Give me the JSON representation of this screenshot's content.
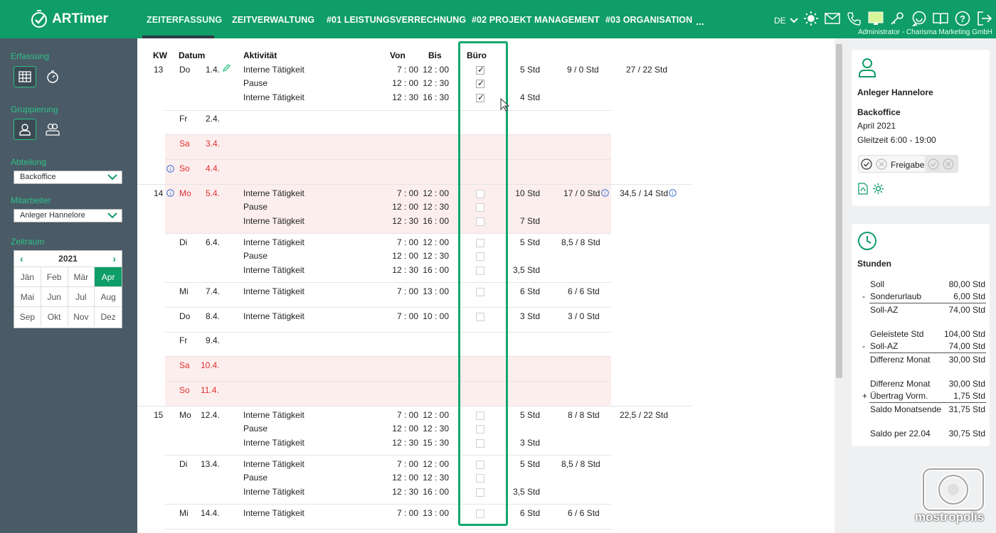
{
  "app": {
    "name": "ARTimer"
  },
  "nav": {
    "tabs": [
      "ZEITERFASSUNG",
      "ZEITVERWALTUNG",
      "#01 LEISTUNGSVERRECHNUNG",
      "#02 PROJEKT MANAGEMENT",
      "#03 ORGANISATION"
    ],
    "more": "...",
    "lang": "DE",
    "admin": "Administrator - Charisma Marketing GmbH",
    "icons": [
      "sun-icon",
      "mail-icon",
      "phone-icon",
      "note-icon",
      "key-icon",
      "chat-icon",
      "book-icon",
      "help-icon",
      "logout-icon"
    ]
  },
  "sidebar": {
    "erfassung_label": "Erfassung",
    "gruppierung_label": "Gruppierung",
    "abteilung_label": "Abteilung",
    "abteilung_value": "Backoffice",
    "mitarbeiter_label": "Mitarbeiter",
    "mitarbeiter_value": "Anleger Hannelore",
    "zeitraum_label": "Zeitraum",
    "year": "2021",
    "months": [
      "Jän",
      "Feb",
      "Mär",
      "Apr",
      "Mai",
      "Jun",
      "Jul",
      "Aug",
      "Sep",
      "Okt",
      "Nov",
      "Dez"
    ],
    "active_month": "Apr"
  },
  "table": {
    "headers": {
      "kw": "KW",
      "datum": "Datum",
      "aktivitaet": "Aktivität",
      "von": "Von",
      "bis": "Bis",
      "buero": "Büro"
    },
    "kw": {
      "k13": "13",
      "k14": "14",
      "k15": "15"
    },
    "days": [
      {
        "day": "Do",
        "date": "1.4."
      },
      {
        "day": "Fr",
        "date": "2.4."
      },
      {
        "day": "Sa",
        "date": "3.4."
      },
      {
        "day": "So",
        "date": "4.4."
      },
      {
        "day": "Mo",
        "date": "5.4."
      },
      {
        "day": "Di",
        "date": "6.4."
      },
      {
        "day": "Mi",
        "date": "7.4."
      },
      {
        "day": "Do",
        "date": "8.4."
      },
      {
        "day": "Fr",
        "date": "9.4."
      },
      {
        "day": "Sa",
        "date": "10.4."
      },
      {
        "day": "So",
        "date": "11.4."
      },
      {
        "day": "Mo",
        "date": "12.4."
      },
      {
        "day": "Di",
        "date": "13.4."
      },
      {
        "day": "Mi",
        "date": "14.4."
      }
    ],
    "entries": [
      {
        "act": "Interne Tätigkeit",
        "von": "7 : 00",
        "bis": "12 : 00",
        "std": "5 Std"
      },
      {
        "act": "Pause",
        "von": "12 : 00",
        "bis": "12 : 30"
      },
      {
        "act": "Interne Tätigkeit",
        "von": "12 : 30",
        "bis": "16 : 30",
        "std": "4 Std"
      },
      {
        "act": "Interne Tätigkeit",
        "von": "7 : 00",
        "bis": "12 : 00",
        "std": "10 Std"
      },
      {
        "act": "Pause",
        "von": "12 : 00",
        "bis": "12 : 30"
      },
      {
        "act": "Interne Tätigkeit",
        "von": "12 : 30",
        "bis": "16 : 00",
        "std": "7 Std"
      },
      {
        "act": "Interne Tätigkeit",
        "von": "7 : 00",
        "bis": "12 : 00",
        "std": "5 Std"
      },
      {
        "act": "Pause",
        "von": "12 : 00",
        "bis": "12 : 30"
      },
      {
        "act": "Interne Tätigkeit",
        "von": "12 : 30",
        "bis": "16 : 00",
        "std": "3,5 Std"
      },
      {
        "act": "Interne Tätigkeit",
        "von": "7 : 00",
        "bis": "13 : 00",
        "std": "6 Std"
      },
      {
        "act": "Interne Tätigkeit",
        "von": "7 : 00",
        "bis": "10 : 00",
        "std": "3 Std"
      },
      {
        "act": "Interne Tätigkeit",
        "von": "7 : 00",
        "bis": "12 : 00",
        "std": "5 Std"
      },
      {
        "act": "Pause",
        "von": "12 : 00",
        "bis": "12 : 30"
      },
      {
        "act": "Interne Tätigkeit",
        "von": "12 : 30",
        "bis": "15 : 30",
        "std": "3 Std"
      },
      {
        "act": "Interne Tätigkeit",
        "von": "7 : 00",
        "bis": "12 : 00",
        "std": "5 Std"
      },
      {
        "act": "Pause",
        "von": "12 : 00",
        "bis": "12 : 30"
      },
      {
        "act": "Interne Tätigkeit",
        "von": "12 : 30",
        "bis": "16 : 00",
        "std": "3,5 Std"
      },
      {
        "act": "Interne Tätigkeit",
        "von": "7 : 00",
        "bis": "13 : 00",
        "std": "6 Std"
      }
    ],
    "daysum": {
      "d1": "9 / 0 Std",
      "d5": "17 / 0 Std",
      "d6": "8,5 / 8 Std",
      "d7": "6 / 6 Std",
      "d8": "3 / 0 Std",
      "d12": "8 / 8 Std",
      "d13": "8,5 / 8 Std",
      "d14": "6 / 6 Std"
    },
    "weeksum": {
      "w13": "27 / 22 Std",
      "w14": "34,5 / 14 Std",
      "w15": "22,5 / 22 Std"
    }
  },
  "right": {
    "name": "Anleger Hannelore",
    "dept": "Backoffice",
    "month": "April 2021",
    "gleitzeit": "Gleitzeit 6:00 - 19:00",
    "freigabe": "Freigabe",
    "stunden_title": "Stunden",
    "rows": [
      {
        "sign": "",
        "label": "Soll",
        "value": "80,00 Std"
      },
      {
        "sign": "-",
        "label": "Sonderurlaub",
        "value": "6,00 Std"
      },
      {
        "sign": "",
        "label": "Soll-AZ",
        "value": "74,00 Std"
      },
      {
        "sign": "",
        "label": "Geleistete Std",
        "value": "104,00 Std"
      },
      {
        "sign": "-",
        "label": "Soll-AZ",
        "value": "74,00 Std"
      },
      {
        "sign": "",
        "label": "Differenz Monat",
        "value": "30,00 Std"
      },
      {
        "sign": "",
        "label": "Differenz Monat",
        "value": "30,00 Std"
      },
      {
        "sign": "+",
        "label": "Übertrag Vorm.",
        "value": "1,75 Std"
      },
      {
        "sign": "",
        "label": "Saldo Monatsende",
        "value": "31,75 Std"
      },
      {
        "sign": "",
        "label": "Saldo per 22.04",
        "value": "30,75 Std"
      }
    ]
  },
  "watermark": "mostropolis"
}
